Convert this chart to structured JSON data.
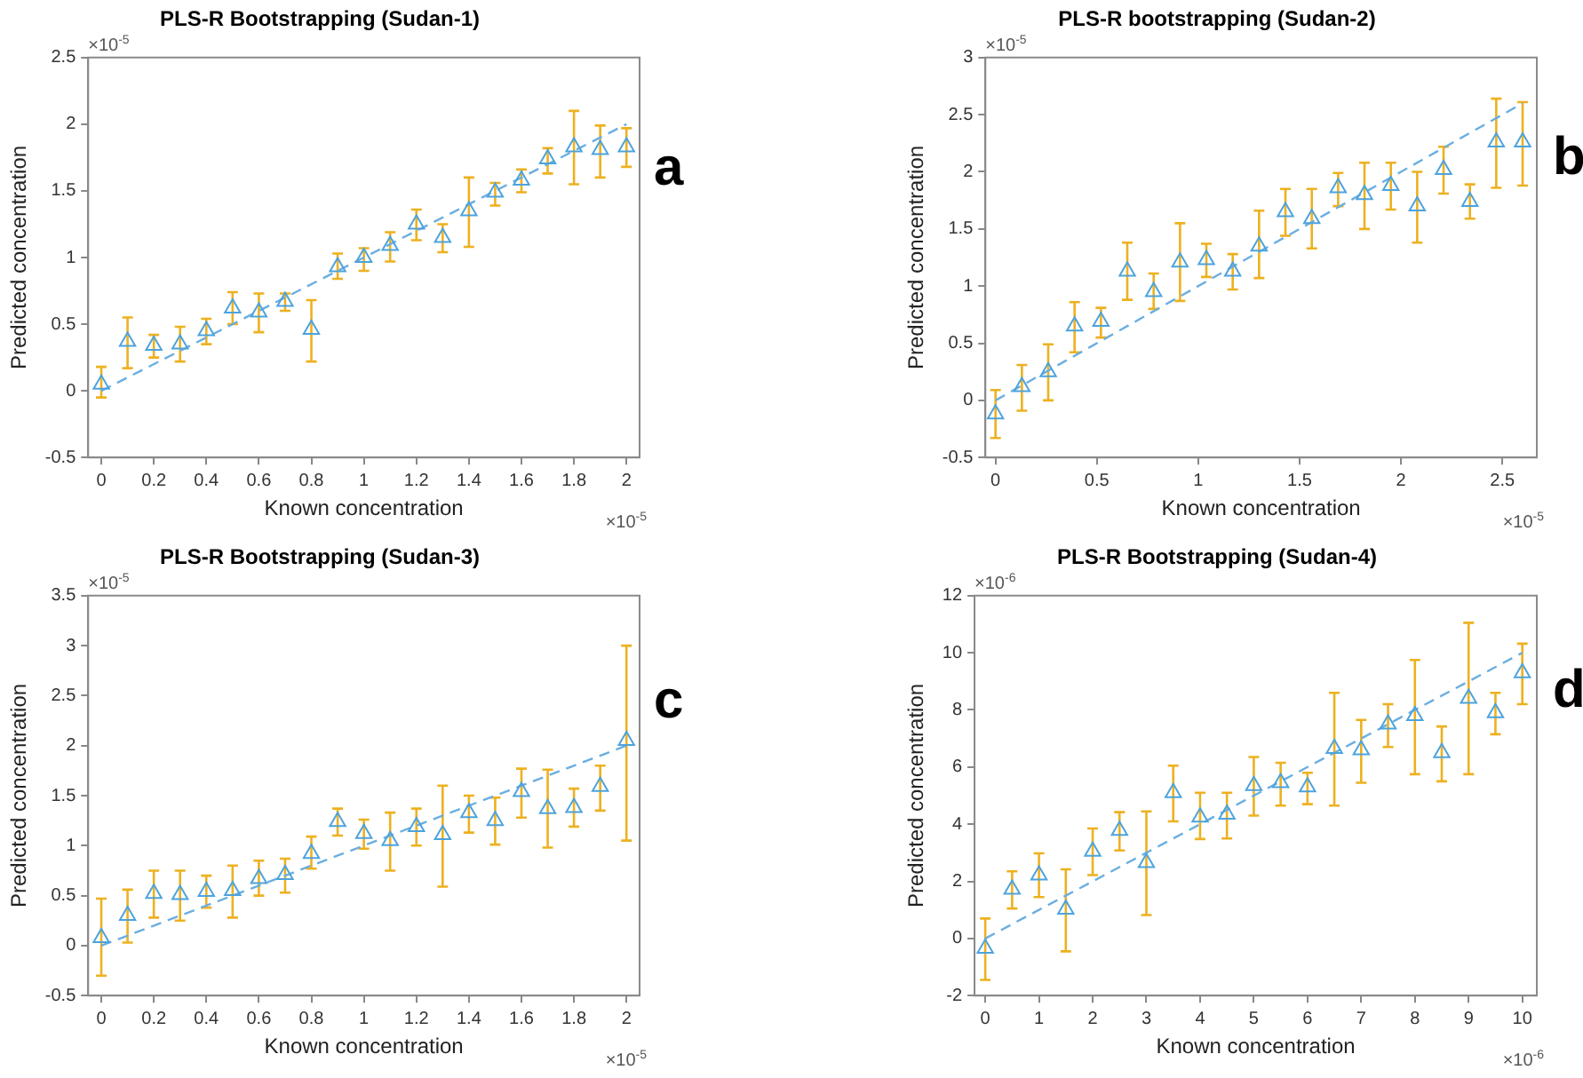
{
  "chart_data": [
    {
      "type": "scatter",
      "title": "PLS-R Bootstrapping (Sudan-1)",
      "xlabel": "Known concentration",
      "ylabel": "Predicted concentration",
      "annotations": [
        "×10$^{-5}$",
        "×10$^{-5}$",
        "a"
      ],
      "xlim": [
        -0.05,
        2.05
      ],
      "xticks": [
        0,
        0.2,
        0.4,
        0.6,
        0.8,
        1,
        1.2,
        1.4,
        1.6,
        1.8,
        2
      ],
      "ylim": [
        -0.5,
        2.5
      ],
      "yticks": [
        -0.5,
        0,
        0.5,
        1,
        1.5,
        2,
        2.5
      ],
      "marker": "triangle",
      "series": [
        {
          "color": "#4da3dc",
          "x": [
            0,
            0.1,
            0.2,
            0.3,
            0.4,
            0.5,
            0.6,
            0.7,
            0.8,
            0.9,
            1.0,
            1.1,
            1.2,
            1.3,
            1.4,
            1.5,
            1.6,
            1.7,
            1.8,
            1.9,
            2.0
          ],
          "values": [
            0.05,
            0.37,
            0.34,
            0.35,
            0.45,
            0.62,
            0.59,
            0.67,
            0.46,
            0.93,
            1.0,
            1.09,
            1.25,
            1.15,
            1.35,
            1.49,
            1.58,
            1.74,
            1.83,
            1.81,
            1.83
          ],
          "errors": [
            [
              -0.05,
              0.18
            ],
            [
              0.17,
              0.55
            ],
            [
              0.25,
              0.42
            ],
            [
              0.22,
              0.48
            ],
            [
              0.35,
              0.54
            ],
            [
              0.5,
              0.74
            ],
            [
              0.44,
              0.73
            ],
            [
              0.6,
              0.73
            ],
            [
              0.22,
              0.68
            ],
            [
              0.84,
              1.03
            ],
            [
              0.9,
              1.07
            ],
            [
              0.97,
              1.19
            ],
            [
              1.13,
              1.36
            ],
            [
              1.04,
              1.25
            ],
            [
              1.08,
              1.6
            ],
            [
              1.39,
              1.56
            ],
            [
              1.49,
              1.66
            ],
            [
              1.63,
              1.82
            ],
            [
              1.55,
              2.1
            ],
            [
              1.6,
              1.99
            ],
            [
              1.68,
              1.97
            ]
          ]
        },
        {
          "type": "line",
          "color": "#6aaee0",
          "marker": "none",
          "line_style": "dashed",
          "x": [
            0,
            2
          ],
          "values": [
            0,
            2
          ]
        }
      ]
    },
    {
      "type": "scatter",
      "title": "PLS-R bootstrapping (Sudan-2)",
      "xlabel": "Known concentration",
      "ylabel": "Predicted concentration",
      "annotations": [
        "×10$^{-5}$",
        "×10$^{-5}$",
        "b"
      ],
      "xlim": [
        -0.05,
        2.67
      ],
      "xticks": [
        0,
        0.5,
        1,
        1.5,
        2,
        2.5
      ],
      "ylim": [
        -0.5,
        3
      ],
      "yticks": [
        -0.5,
        0,
        0.5,
        1,
        1.5,
        2,
        2.5,
        3
      ],
      "marker": "triangle",
      "series": [
        {
          "color": "#4da3dc",
          "x": [
            0,
            0.13,
            0.26,
            0.39,
            0.52,
            0.65,
            0.78,
            0.91,
            1.04,
            1.17,
            1.3,
            1.43,
            1.56,
            1.69,
            1.82,
            1.95,
            2.08,
            2.21,
            2.34,
            2.47,
            2.6
          ],
          "values": [
            -0.12,
            0.12,
            0.25,
            0.65,
            0.69,
            1.13,
            0.95,
            1.21,
            1.23,
            1.13,
            1.35,
            1.65,
            1.59,
            1.86,
            1.8,
            1.88,
            1.7,
            2.02,
            1.74,
            2.26,
            2.26
          ],
          "errors": [
            [
              -0.33,
              0.09
            ],
            [
              -0.09,
              0.31
            ],
            [
              0.0,
              0.49
            ],
            [
              0.42,
              0.86
            ],
            [
              0.55,
              0.81
            ],
            [
              0.88,
              1.38
            ],
            [
              0.8,
              1.11
            ],
            [
              0.87,
              1.55
            ],
            [
              1.08,
              1.37
            ],
            [
              0.97,
              1.28
            ],
            [
              1.07,
              1.66
            ],
            [
              1.44,
              1.85
            ],
            [
              1.33,
              1.85
            ],
            [
              1.7,
              1.99
            ],
            [
              1.5,
              2.08
            ],
            [
              1.67,
              2.08
            ],
            [
              1.38,
              2.0
            ],
            [
              1.81,
              2.22
            ],
            [
              1.59,
              1.89
            ],
            [
              1.86,
              2.64
            ],
            [
              1.88,
              2.61
            ]
          ]
        },
        {
          "type": "line",
          "color": "#6aaee0",
          "marker": "none",
          "line_style": "dashed",
          "x": [
            0,
            2.6
          ],
          "values": [
            0,
            2.6
          ]
        }
      ]
    },
    {
      "type": "scatter",
      "title": "PLS-R Bootstrapping (Sudan-3)",
      "xlabel": "Known concentration",
      "ylabel": "Predicted concentration",
      "annotations": [
        "×10$^{-5}$",
        "×10$^{-5}$",
        "c"
      ],
      "xlim": [
        -0.05,
        2.05
      ],
      "xticks": [
        0,
        0.2,
        0.4,
        0.6,
        0.8,
        1,
        1.2,
        1.4,
        1.6,
        1.8,
        2
      ],
      "ylim": [
        -0.5,
        3.5
      ],
      "yticks": [
        -0.5,
        0,
        0.5,
        1,
        1.5,
        2,
        2.5,
        3,
        3.5
      ],
      "marker": "triangle",
      "series": [
        {
          "color": "#4da3dc",
          "x": [
            0,
            0.1,
            0.2,
            0.3,
            0.4,
            0.5,
            0.6,
            0.7,
            0.8,
            0.9,
            1.0,
            1.1,
            1.2,
            1.3,
            1.4,
            1.5,
            1.6,
            1.7,
            1.8,
            1.9,
            2.0
          ],
          "values": [
            0.08,
            0.3,
            0.52,
            0.51,
            0.54,
            0.55,
            0.67,
            0.71,
            0.92,
            1.24,
            1.12,
            1.05,
            1.19,
            1.11,
            1.33,
            1.25,
            1.54,
            1.37,
            1.38,
            1.59,
            2.05
          ],
          "errors": [
            [
              -0.3,
              0.47
            ],
            [
              0.03,
              0.56
            ],
            [
              0.28,
              0.75
            ],
            [
              0.25,
              0.75
            ],
            [
              0.38,
              0.7
            ],
            [
              0.28,
              0.8
            ],
            [
              0.5,
              0.85
            ],
            [
              0.53,
              0.87
            ],
            [
              0.77,
              1.09
            ],
            [
              1.1,
              1.37
            ],
            [
              0.97,
              1.26
            ],
            [
              0.75,
              1.33
            ],
            [
              1.0,
              1.37
            ],
            [
              0.59,
              1.6
            ],
            [
              1.13,
              1.5
            ],
            [
              1.01,
              1.48
            ],
            [
              1.28,
              1.77
            ],
            [
              0.98,
              1.76
            ],
            [
              1.19,
              1.57
            ],
            [
              1.35,
              1.8
            ],
            [
              1.05,
              3.0
            ]
          ]
        },
        {
          "type": "line",
          "color": "#6aaee0",
          "marker": "none",
          "line_style": "dashed",
          "x": [
            0,
            2
          ],
          "values": [
            0,
            2
          ]
        }
      ]
    },
    {
      "type": "scatter",
      "title": "PLS-R Bootstrapping (Sudan-4)",
      "xlabel": "Known concentration",
      "ylabel": "Predicted concentration",
      "annotations": [
        "×10$^{-6}$",
        "×10$^{-6}$",
        "d"
      ],
      "xlim": [
        -0.2,
        10.27
      ],
      "xticks": [
        0,
        1,
        2,
        3,
        4,
        5,
        6,
        7,
        8,
        9,
        10
      ],
      "ylim": [
        -2,
        12
      ],
      "yticks": [
        -2,
        0,
        2,
        4,
        6,
        8,
        10,
        12
      ],
      "marker": "triangle",
      "series": [
        {
          "color": "#4da3dc",
          "x": [
            0,
            0.5,
            1,
            1.5,
            2,
            2.5,
            3,
            3.5,
            4,
            4.5,
            5,
            5.5,
            6,
            6.5,
            7,
            7.5,
            8,
            8.5,
            9,
            9.5,
            10
          ],
          "values": [
            -0.35,
            1.72,
            2.22,
            1.02,
            3.05,
            3.78,
            2.65,
            5.1,
            4.25,
            4.35,
            5.35,
            5.45,
            5.3,
            6.65,
            6.6,
            7.5,
            7.8,
            6.5,
            8.4,
            7.9,
            9.3
          ],
          "errors": [
            [
              -1.45,
              0.7
            ],
            [
              1.05,
              2.35
            ],
            [
              1.45,
              2.98
            ],
            [
              -0.45,
              2.42
            ],
            [
              2.22,
              3.85
            ],
            [
              3.08,
              4.42
            ],
            [
              0.82,
              4.45
            ],
            [
              4.1,
              6.05
            ],
            [
              3.48,
              5.1
            ],
            [
              3.5,
              5.1
            ],
            [
              4.3,
              6.35
            ],
            [
              4.65,
              6.15
            ],
            [
              4.7,
              5.8
            ],
            [
              4.65,
              8.6
            ],
            [
              5.45,
              7.65
            ],
            [
              6.7,
              8.2
            ],
            [
              5.75,
              9.75
            ],
            [
              5.5,
              7.42
            ],
            [
              5.75,
              11.05
            ],
            [
              7.15,
              8.6
            ],
            [
              8.2,
              10.32
            ]
          ]
        },
        {
          "type": "line",
          "color": "#6aaee0",
          "marker": "none",
          "line_style": "dashed",
          "x": [
            0,
            10
          ],
          "values": [
            0,
            10
          ]
        }
      ]
    }
  ]
}
